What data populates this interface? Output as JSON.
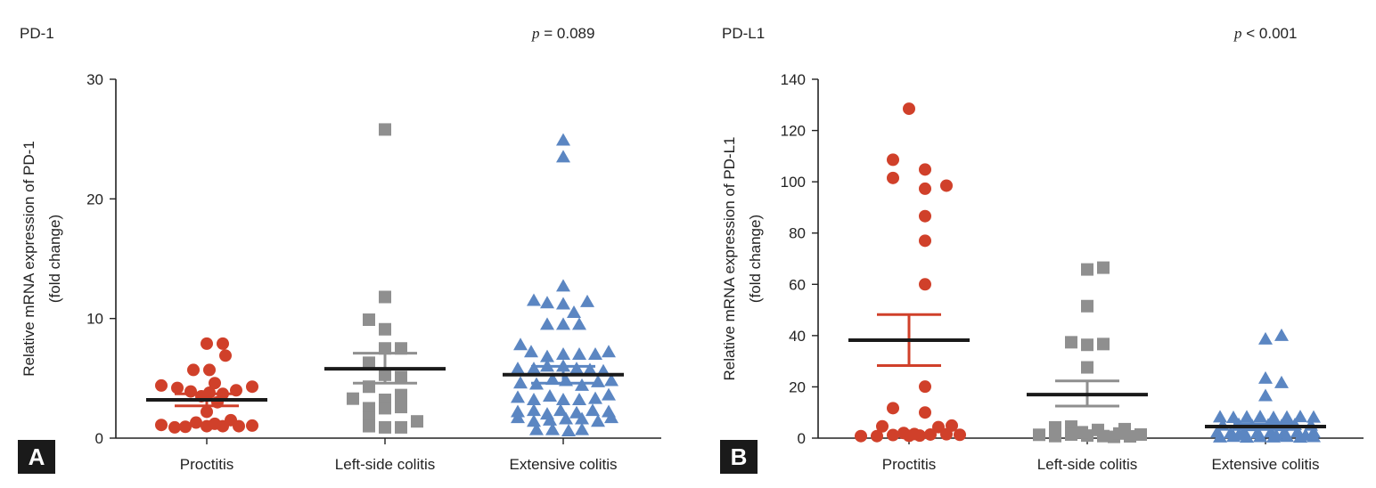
{
  "panels": [
    {
      "title": "PD-1",
      "p_label": "p",
      "p_value": "= 0.089",
      "badge": "A"
    },
    {
      "title": "PD-L1",
      "p_label": "p",
      "p_value": "< 0.001",
      "badge": "B"
    }
  ],
  "colors": {
    "proctitis": "#d0402a",
    "left_side": "#8f8f8f",
    "extensive": "#5b86c2",
    "mean_line": "#1a1a1a"
  },
  "chart_data": [
    {
      "type": "scatter",
      "title": "PD-1",
      "ylabel": [
        "Relative mRNA expression of PD-1",
        "(fold change)"
      ],
      "xlabel": "",
      "ylim": [
        0,
        30
      ],
      "yticks": [
        0,
        10,
        20,
        30
      ],
      "categories": [
        "Proctitis",
        "Left-side colitis",
        "Extensive colitis"
      ],
      "annotation": "p = 0.089",
      "groups": [
        {
          "name": "Proctitis",
          "marker": "circle",
          "color": "#d0402a",
          "mean": 3.2,
          "sem_low": 2.7,
          "sem_high": 3.7,
          "points": [
            [
              -0.85,
              1.1
            ],
            [
              -0.6,
              0.9
            ],
            [
              -0.4,
              0.95
            ],
            [
              -0.2,
              1.3
            ],
            [
              0.0,
              1.0
            ],
            [
              0.15,
              1.2
            ],
            [
              0.3,
              1.0
            ],
            [
              0.45,
              1.5
            ],
            [
              0.6,
              1.0
            ],
            [
              0.85,
              1.05
            ],
            [
              -0.85,
              4.4
            ],
            [
              -0.55,
              4.2
            ],
            [
              -0.3,
              3.9
            ],
            [
              -0.1,
              3.5
            ],
            [
              0.0,
              2.2
            ],
            [
              0.05,
              3.8
            ],
            [
              0.3,
              3.7
            ],
            [
              0.55,
              4.0
            ],
            [
              0.85,
              4.3
            ],
            [
              -0.25,
              5.7
            ],
            [
              0.05,
              5.7
            ],
            [
              0.15,
              4.6
            ],
            [
              0.2,
              3.0
            ],
            [
              0.3,
              7.9
            ],
            [
              0.0,
              7.9
            ],
            [
              0.35,
              6.9
            ]
          ]
        },
        {
          "name": "Left-side colitis",
          "marker": "square",
          "color": "#8f8f8f",
          "mean": 5.8,
          "sem_low": 4.6,
          "sem_high": 7.1,
          "points": [
            [
              0.0,
              25.8
            ],
            [
              0.0,
              11.8
            ],
            [
              -0.3,
              9.9
            ],
            [
              0.0,
              9.1
            ],
            [
              0.0,
              7.5
            ],
            [
              0.3,
              7.5
            ],
            [
              -0.3,
              6.3
            ],
            [
              0.0,
              5.3
            ],
            [
              0.3,
              5.1
            ],
            [
              -0.3,
              4.3
            ],
            [
              0.3,
              3.6
            ],
            [
              -0.6,
              3.3
            ],
            [
              0.0,
              3.2
            ],
            [
              -0.3,
              2.5
            ],
            [
              0.3,
              2.6
            ],
            [
              -0.3,
              1.7
            ],
            [
              0.0,
              2.5
            ],
            [
              0.6,
              1.4
            ],
            [
              -0.3,
              1.0
            ],
            [
              0.3,
              0.9
            ],
            [
              0.0,
              0.9
            ]
          ]
        },
        {
          "name": "Extensive colitis",
          "marker": "triangle",
          "color": "#5b86c2",
          "mean": 5.3,
          "sem_low": 4.6,
          "sem_high": 6.0,
          "points": [
            [
              0.0,
              24.9
            ],
            [
              0.0,
              23.5
            ],
            [
              0.0,
              12.7
            ],
            [
              -0.55,
              11.5
            ],
            [
              -0.3,
              11.3
            ],
            [
              0.0,
              11.2
            ],
            [
              0.45,
              11.4
            ],
            [
              0.2,
              10.5
            ],
            [
              -0.3,
              9.5
            ],
            [
              0.0,
              9.5
            ],
            [
              0.3,
              9.5
            ],
            [
              -0.8,
              7.8
            ],
            [
              -0.6,
              7.2
            ],
            [
              -0.3,
              6.8
            ],
            [
              0.0,
              7.0
            ],
            [
              0.3,
              7.0
            ],
            [
              0.6,
              7.0
            ],
            [
              0.85,
              7.2
            ],
            [
              -0.85,
              5.8
            ],
            [
              -0.55,
              5.8
            ],
            [
              -0.3,
              6.0
            ],
            [
              0.0,
              6.0
            ],
            [
              0.25,
              5.8
            ],
            [
              0.5,
              5.7
            ],
            [
              0.75,
              5.6
            ],
            [
              -0.8,
              4.6
            ],
            [
              -0.5,
              4.5
            ],
            [
              -0.2,
              4.9
            ],
            [
              0.05,
              4.8
            ],
            [
              0.35,
              4.4
            ],
            [
              0.65,
              4.7
            ],
            [
              0.9,
              4.8
            ],
            [
              -0.85,
              3.4
            ],
            [
              -0.55,
              3.2
            ],
            [
              -0.25,
              3.5
            ],
            [
              0.0,
              3.2
            ],
            [
              0.3,
              3.2
            ],
            [
              0.6,
              3.3
            ],
            [
              0.85,
              3.6
            ],
            [
              -0.85,
              2.2
            ],
            [
              -0.55,
              2.3
            ],
            [
              -0.3,
              2.0
            ],
            [
              -0.05,
              2.3
            ],
            [
              0.25,
              2.1
            ],
            [
              0.55,
              2.3
            ],
            [
              0.85,
              2.2
            ],
            [
              -0.85,
              1.7
            ],
            [
              -0.55,
              1.4
            ],
            [
              -0.25,
              1.5
            ],
            [
              0.05,
              1.6
            ],
            [
              0.35,
              1.6
            ],
            [
              0.65,
              1.4
            ],
            [
              0.9,
              1.7
            ],
            [
              -0.5,
              0.7
            ],
            [
              -0.2,
              0.7
            ],
            [
              0.1,
              0.6
            ],
            [
              0.35,
              0.7
            ]
          ]
        }
      ]
    },
    {
      "type": "scatter",
      "title": "PD-L1",
      "ylabel": [
        "Relative mRNA expression of PD-L1",
        "(fold change)"
      ],
      "xlabel": "",
      "ylim": [
        0,
        140
      ],
      "yticks": [
        0,
        20,
        40,
        60,
        80,
        100,
        120,
        140
      ],
      "categories": [
        "Proctitis",
        "Left-side colitis",
        "Extensive colitis"
      ],
      "annotation": "p < 0.001",
      "groups": [
        {
          "name": "Proctitis",
          "marker": "circle",
          "color": "#d0402a",
          "mean": 38.2,
          "sem_low": 28.3,
          "sem_high": 48.2,
          "points": [
            [
              0.0,
              128.5
            ],
            [
              -0.3,
              108.6
            ],
            [
              0.3,
              104.8
            ],
            [
              -0.3,
              101.5
            ],
            [
              0.3,
              97.3
            ],
            [
              0.7,
              98.5
            ],
            [
              0.3,
              86.6
            ],
            [
              0.3,
              77.0
            ],
            [
              0.3,
              60.0
            ],
            [
              0.3,
              20.1
            ],
            [
              -0.3,
              11.7
            ],
            [
              0.3,
              10.0
            ],
            [
              -0.9,
              0.8
            ],
            [
              -0.6,
              0.8
            ],
            [
              -0.3,
              1.2
            ],
            [
              -0.1,
              2.0
            ],
            [
              0.0,
              0.9
            ],
            [
              0.2,
              1.0
            ],
            [
              0.4,
              1.4
            ],
            [
              0.55,
              4.3
            ],
            [
              0.7,
              1.5
            ],
            [
              0.8,
              4.9
            ],
            [
              0.95,
              1.3
            ],
            [
              -0.5,
              4.6
            ],
            [
              0.1,
              1.6
            ]
          ]
        },
        {
          "name": "Left-side colitis",
          "marker": "square",
          "color": "#8f8f8f",
          "mean": 17.0,
          "sem_low": 12.5,
          "sem_high": 22.3,
          "points": [
            [
              0.0,
              65.8
            ],
            [
              0.3,
              66.5
            ],
            [
              0.0,
              51.5
            ],
            [
              -0.3,
              37.4
            ],
            [
              0.0,
              36.4
            ],
            [
              0.3,
              36.7
            ],
            [
              0.0,
              27.6
            ],
            [
              -0.9,
              1.3
            ],
            [
              -0.6,
              4.2
            ],
            [
              -0.6,
              0.8
            ],
            [
              -0.3,
              4.5
            ],
            [
              -0.3,
              1.4
            ],
            [
              0.0,
              1.0
            ],
            [
              -0.1,
              2.3
            ],
            [
              0.2,
              3.2
            ],
            [
              0.3,
              0.8
            ],
            [
              0.5,
              0.5
            ],
            [
              0.7,
              3.5
            ],
            [
              0.8,
              0.7
            ],
            [
              1.0,
              1.4
            ],
            [
              0.6,
              1.8
            ]
          ]
        },
        {
          "name": "Extensive colitis",
          "marker": "triangle",
          "color": "#5b86c2",
          "mean": 4.5,
          "sem_low": 3.4,
          "sem_high": 5.6,
          "points": [
            [
              0.0,
              38.6
            ],
            [
              0.3,
              40.0
            ],
            [
              0.0,
              23.3
            ],
            [
              0.3,
              21.6
            ],
            [
              0.0,
              16.5
            ],
            [
              -0.85,
              8.2
            ],
            [
              -0.6,
              8.0
            ],
            [
              -0.35,
              8.2
            ],
            [
              -0.1,
              8.3
            ],
            [
              0.15,
              8.0
            ],
            [
              0.4,
              8.1
            ],
            [
              0.65,
              8.3
            ],
            [
              0.9,
              8.1
            ],
            [
              -0.8,
              5.0
            ],
            [
              -0.5,
              5.3
            ],
            [
              -0.25,
              4.8
            ],
            [
              0.05,
              5.1
            ],
            [
              0.3,
              4.8
            ],
            [
              0.55,
              5.2
            ],
            [
              0.85,
              5.0
            ],
            [
              -0.9,
              2.3
            ],
            [
              -0.65,
              2.0
            ],
            [
              -0.4,
              2.4
            ],
            [
              -0.15,
              2.0
            ],
            [
              0.1,
              2.3
            ],
            [
              0.35,
              2.1
            ],
            [
              0.6,
              2.4
            ],
            [
              0.9,
              2.2
            ],
            [
              -0.85,
              0.4
            ],
            [
              -0.6,
              0.6
            ],
            [
              -0.35,
              0.3
            ],
            [
              -0.1,
              0.5
            ],
            [
              0.15,
              0.4
            ],
            [
              0.4,
              0.6
            ],
            [
              0.65,
              0.3
            ],
            [
              0.9,
              0.5
            ],
            [
              -0.5,
              1.2
            ],
            [
              0.2,
              1.0
            ],
            [
              0.75,
              1.1
            ]
          ]
        }
      ]
    }
  ]
}
